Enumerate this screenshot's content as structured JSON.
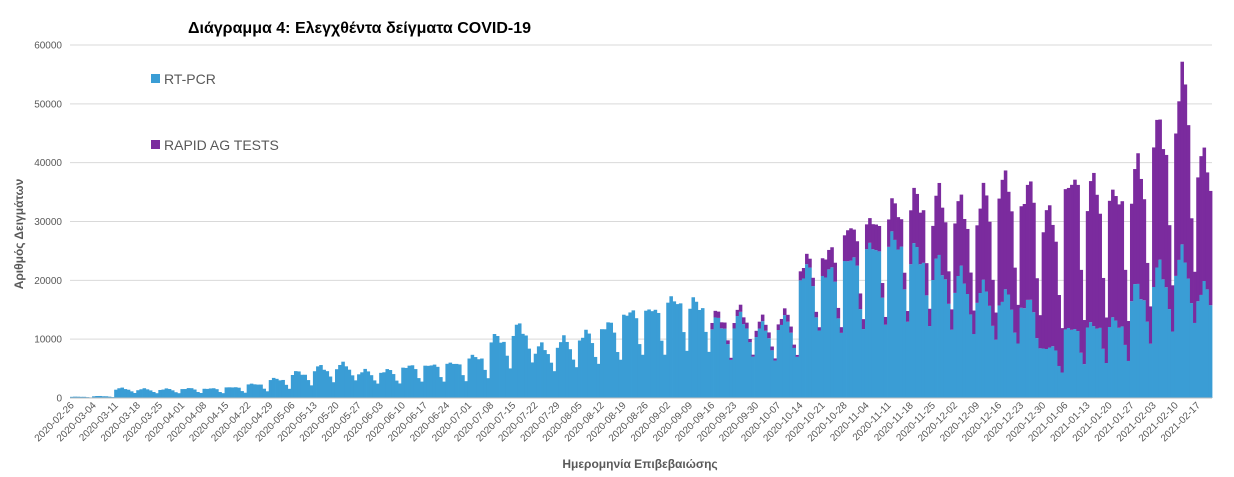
{
  "chart_data": {
    "type": "bar",
    "stacked": true,
    "title": "Διάγραμμα 4: Ελεγχθέντα δείγματα COVID-19",
    "xlabel": "Ημερομηνία Επιβεβαιώσης",
    "ylabel": "Αριθμός Δειγμάτων",
    "ylim": [
      0,
      60000
    ],
    "yticks": [
      0,
      10000,
      20000,
      30000,
      40000,
      50000,
      60000
    ],
    "grid": true,
    "legend_position": "top-left",
    "x_start": "2020-02-26",
    "x_end": "2021-02-21",
    "x_tick_labels": [
      "2020-02-26",
      "2020-03-04",
      "2020-03-11",
      "2020-03-18",
      "2020-03-25",
      "2020-04-01",
      "2020-04-08",
      "2020-04-15",
      "2020-04-22",
      "2020-04-29",
      "2020-05-06",
      "2020-05-13",
      "2020-05-20",
      "2020-05-27",
      "2020-06-03",
      "2020-06-10",
      "2020-06-17",
      "2020-06-24",
      "2020-07-01",
      "2020-07-08",
      "2020-07-15",
      "2020-07-22",
      "2020-07-29",
      "2020-08-05",
      "2020-08-12",
      "2020-08-19",
      "2020-08-26",
      "2020-09-02",
      "2020-09-09",
      "2020-09-16",
      "2020-09-23",
      "2020-09-30",
      "2020-10-07",
      "2020-10-14",
      "2020-10-21",
      "2020-10-28",
      "2020-11-04",
      "2020-11-11",
      "2020-11-18",
      "2020-11-25",
      "2020-12-02",
      "2020-12-09",
      "2020-12-16",
      "2020-12-23",
      "2020-12-30",
      "2021-01-06",
      "2021-01-13",
      "2021-01-20",
      "2021-01-27",
      "2021-02-03",
      "2021-02-10",
      "2021-02-17"
    ],
    "series": [
      {
        "name": "RT-PCR",
        "color": "#3a9dd5",
        "weekly_typical_values": [
          200,
          300,
          1500,
          1400,
          1400,
          1500,
          1500,
          1700,
          2200,
          3000,
          4000,
          4800,
          5200,
          4200,
          4300,
          5000,
          5200,
          5500,
          6500,
          9500,
          11000,
          8000,
          9000,
          10000,
          11500,
          13500,
          14000,
          15500,
          15000,
          12000,
          12500,
          11000,
          12000,
          20000,
          20000,
          22000,
          24000,
          25000,
          23000,
          21000,
          19000,
          17000,
          16000,
          15000,
          8000,
          11000,
          11500,
          12000,
          17000,
          20000,
          22000,
          17000
        ]
      },
      {
        "name": "RAPID AG TESTS",
        "color": "#7b2b9e",
        "weekly_typical_values": [
          0,
          0,
          0,
          0,
          0,
          0,
          0,
          0,
          0,
          0,
          0,
          0,
          0,
          0,
          0,
          0,
          0,
          0,
          0,
          0,
          0,
          0,
          0,
          0,
          0,
          0,
          0,
          0,
          0,
          1000,
          1000,
          1000,
          1000,
          1500,
          3000,
          4500,
          4000,
          5000,
          8500,
          10000,
          11000,
          14000,
          17500,
          17500,
          20000,
          23000,
          21000,
          20000,
          18000,
          22000,
          26000,
          20000
        ]
      }
    ]
  }
}
